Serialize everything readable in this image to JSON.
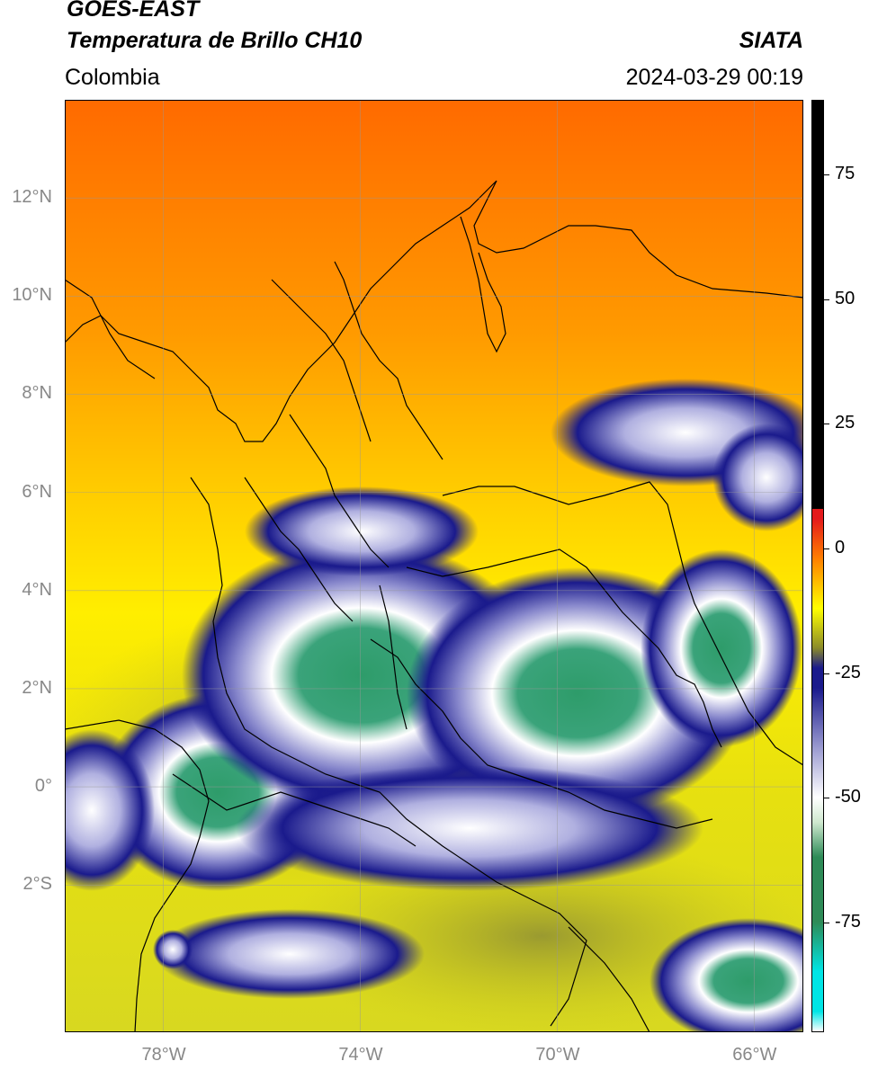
{
  "header": {
    "satellite": "GOES-EAST",
    "product": "Temperatura de Brillo CH10",
    "region": "Colombia",
    "agency": "SIATA",
    "datetime": "2024-03-29 00:19"
  },
  "map": {
    "lon_range": [
      -80,
      -65
    ],
    "lat_range": [
      -5,
      14
    ],
    "lon_ticks": [
      {
        "value": -78,
        "label": "78°W"
      },
      {
        "value": -74,
        "label": "74°W"
      },
      {
        "value": -70,
        "label": "70°W"
      },
      {
        "value": -66,
        "label": "66°W"
      }
    ],
    "lat_ticks": [
      {
        "value": 12,
        "label": "12°N"
      },
      {
        "value": 10,
        "label": "10°N"
      },
      {
        "value": 8,
        "label": "8°N"
      },
      {
        "value": 6,
        "label": "6°N"
      },
      {
        "value": 4,
        "label": "4°N"
      },
      {
        "value": 2,
        "label": "2°N"
      },
      {
        "value": 0,
        "label": "0°"
      },
      {
        "value": -2,
        "label": "2°S"
      }
    ],
    "grid": true
  },
  "colorbar": {
    "range": [
      -97,
      90
    ],
    "ticks": [
      {
        "value": 75,
        "label": "75"
      },
      {
        "value": 50,
        "label": "50"
      },
      {
        "value": 25,
        "label": "25"
      },
      {
        "value": 0,
        "label": "0"
      },
      {
        "value": -25,
        "label": "-25"
      },
      {
        "value": -50,
        "label": "-50"
      },
      {
        "value": -75,
        "label": "-75"
      }
    ],
    "colors": {
      "black": "#000000",
      "red": "#e41a1c",
      "orange": "#ff7f00",
      "yellow": "#ffff00",
      "olive": "#8a8a2a",
      "navy": "#1a1a8c",
      "white": "#ffffff",
      "green": "#2e8b57",
      "cyan": "#00e5e5"
    }
  }
}
